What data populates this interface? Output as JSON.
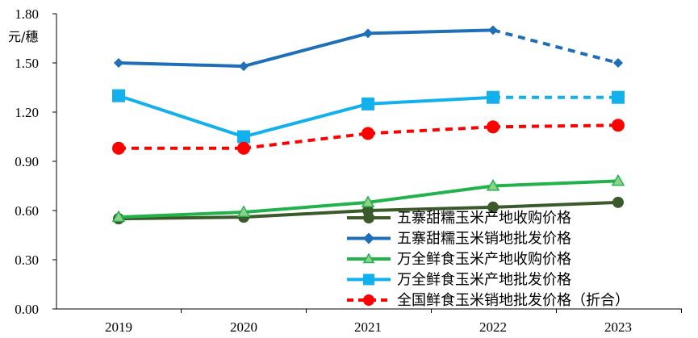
{
  "chart_data": {
    "type": "line",
    "ylabel": "元/穗",
    "ylim": [
      0,
      1.8
    ],
    "yticks": [
      "0.00",
      "0.30",
      "0.60",
      "0.90",
      "1.20",
      "1.50",
      "1.80"
    ],
    "categories": [
      "2019",
      "2020",
      "2021",
      "2022",
      "2023"
    ],
    "legend_position": "bottom-right",
    "series": [
      {
        "name": "五寨甜糯玉米产地收购价格",
        "values": [
          0.55,
          0.56,
          0.6,
          0.62,
          0.65
        ],
        "color": "#3a5a2a",
        "marker": "circle",
        "dashed_from_index": null
      },
      {
        "name": "五寨甜糯玉米销地批发价格",
        "values": [
          1.5,
          1.48,
          1.68,
          1.7,
          1.5
        ],
        "color": "#1f6fb8",
        "marker": "diamond",
        "dashed_from_index": 3
      },
      {
        "name": "万全鲜食玉米产地收购价格",
        "values": [
          0.56,
          0.59,
          0.65,
          0.75,
          0.78
        ],
        "color": "#22b24c",
        "marker": "triangle",
        "dashed_from_index": null
      },
      {
        "name": "万全鲜食玉米产地批发价格",
        "values": [
          1.3,
          1.05,
          1.25,
          1.29,
          1.29
        ],
        "color": "#13b0ee",
        "marker": "square",
        "dashed_from_index": 3
      },
      {
        "name": "全国鲜食玉米销地批发价格（折合）",
        "values": [
          0.98,
          0.98,
          1.07,
          1.11,
          1.12
        ],
        "color": "#ff0000",
        "marker": "circle",
        "dashed_from_index": 0
      }
    ]
  }
}
